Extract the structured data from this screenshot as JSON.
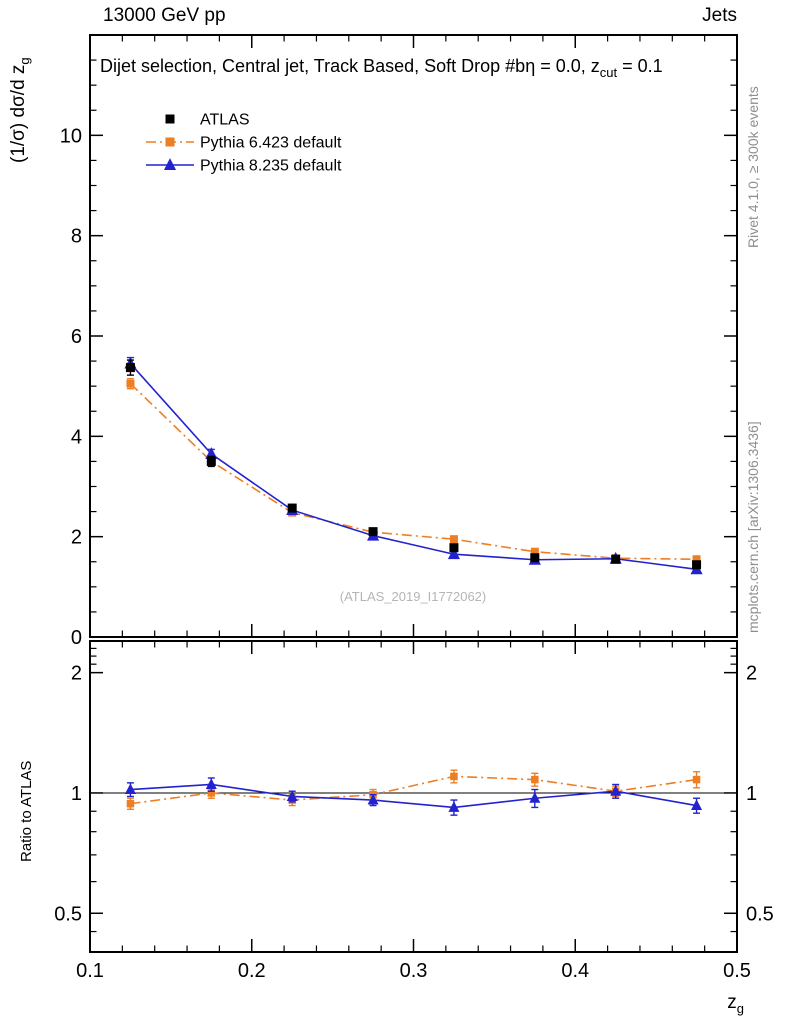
{
  "header": {
    "left": "13000 GeV pp",
    "right": "Jets"
  },
  "title": {
    "part1": "Dijet selection, Central jet, Track Based, Soft Drop #bη = 0.0, z",
    "sub": "cut",
    "part2": " = 0.1"
  },
  "axes": {
    "y_label_main": "(1/σ) dσ/d z",
    "y_label_sub": "g",
    "x_label_main": "z",
    "x_label_sub": "g",
    "ratio_label": "Ratio to ATLAS"
  },
  "side_notes": {
    "top_right": "Rivet 4.1.0, ≥ 300k events",
    "bottom_right": "mcplots.cern.ch [arXiv:1306.3436]",
    "watermark": "(ATLAS_2019_I1772062)"
  },
  "chart_data": {
    "type": "line",
    "title": "Dijet selection, Central jet, Track Based, Soft Drop #bη = 0.0, z_cut = 0.1",
    "xlabel": "z_g",
    "ylabel": "(1/σ) dσ/d z_g",
    "xlim": [
      0.1,
      0.5
    ],
    "ylim_main": [
      0,
      12
    ],
    "x_ticks": [
      0.1,
      0.2,
      0.3,
      0.4,
      0.5
    ],
    "y_ticks_main": [
      0,
      2,
      4,
      6,
      8,
      10
    ],
    "grid": false,
    "legend_position": "top-left",
    "ratio": {
      "label": "Ratio to ATLAS",
      "scale": "log",
      "ylim": [
        0.4,
        2.4
      ],
      "ticks": [
        0.5,
        1,
        2
      ],
      "tick_labels": [
        "0.5",
        "1",
        "2"
      ]
    },
    "x": [
      0.125,
      0.175,
      0.225,
      0.275,
      0.325,
      0.375,
      0.425,
      0.475
    ],
    "series": [
      {
        "name": "ATLAS",
        "marker": "square",
        "color": "#000000",
        "line": "none",
        "values": [
          5.37,
          3.5,
          2.57,
          2.1,
          1.78,
          1.58,
          1.55,
          1.44
        ],
        "errors": [
          0.15,
          0.1,
          0.07,
          0.06,
          0.05,
          0.05,
          0.05,
          0.05
        ],
        "ratio": [
          1,
          1,
          1,
          1,
          1,
          1,
          1,
          1
        ],
        "ratio_errors": [
          0,
          0,
          0,
          0,
          0,
          0,
          0,
          0
        ]
      },
      {
        "name": "Pythia 6.423 default",
        "marker": "square",
        "color": "#ee7e23",
        "line": "dashdot",
        "values": [
          5.05,
          3.5,
          2.48,
          2.09,
          1.95,
          1.7,
          1.57,
          1.55
        ],
        "errors": [
          0.1,
          0.08,
          0.06,
          0.05,
          0.05,
          0.04,
          0.04,
          0.04
        ],
        "ratio": [
          0.94,
          1.0,
          0.96,
          0.99,
          1.1,
          1.08,
          1.01,
          1.08
        ],
        "ratio_errors": [
          0.03,
          0.03,
          0.03,
          0.03,
          0.04,
          0.04,
          0.03,
          0.05
        ]
      },
      {
        "name": "Pythia 8.235 default",
        "marker": "triangle",
        "color": "#2222cf",
        "line": "solid",
        "values": [
          5.45,
          3.65,
          2.53,
          2.02,
          1.65,
          1.54,
          1.56,
          1.35
        ],
        "errors": [
          0.12,
          0.09,
          0.06,
          0.05,
          0.05,
          0.04,
          0.04,
          0.04
        ],
        "ratio": [
          1.02,
          1.05,
          0.98,
          0.96,
          0.92,
          0.97,
          1.01,
          0.93
        ],
        "ratio_errors": [
          0.04,
          0.04,
          0.03,
          0.03,
          0.04,
          0.05,
          0.04,
          0.04
        ]
      }
    ]
  }
}
